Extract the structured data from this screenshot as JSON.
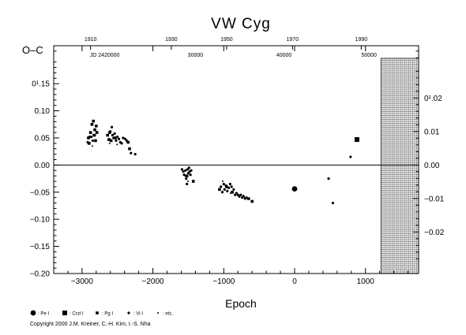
{
  "chart_data": {
    "type": "scatter",
    "title": "VW  Cyg",
    "xlabel": "Epoch",
    "ylabel": "O–C",
    "xlim": [
      -3400,
      1750
    ],
    "ylim": [
      -0.2,
      0.22
    ],
    "right_ylim_days": [
      -0.0324,
      0.0356
    ],
    "grid": false,
    "zero_line": true,
    "hatched_future_region": {
      "x_from": 1220,
      "x_to": 1750
    },
    "x_ticks": [
      {
        "value": -3000,
        "label": "−3000"
      },
      {
        "value": -2000,
        "label": "−2000"
      },
      {
        "value": -1000,
        "label": "−1000"
      },
      {
        "value": 0,
        "label": "0"
      },
      {
        "value": 1000,
        "label": "1000"
      }
    ],
    "y_ticks_left": [
      {
        "value": 0.15,
        "label": "0¹.15"
      },
      {
        "value": 0.1,
        "label": "0.10"
      },
      {
        "value": 0.05,
        "label": "0.05"
      },
      {
        "value": 0.0,
        "label": "0.00"
      },
      {
        "value": -0.05,
        "label": "−0.05"
      },
      {
        "value": -0.1,
        "label": "−0.10"
      },
      {
        "value": -0.15,
        "label": "−0.15"
      },
      {
        "value": -0.2,
        "label": "−0.20"
      }
    ],
    "y_ticks_right": [
      {
        "value": 0.02,
        "label": "0¹.02"
      },
      {
        "value": 0.01,
        "label": "0.01"
      },
      {
        "value": 0.0,
        "label": "0.00"
      },
      {
        "value": -0.01,
        "label": "−0.01"
      },
      {
        "value": -0.02,
        "label": "−0.02"
      }
    ],
    "top_year_ticks": [
      {
        "x": -2880,
        "label": "1910"
      },
      {
        "x": -1740,
        "label": "1930"
      },
      {
        "x": -960,
        "label": "1950"
      },
      {
        "x": -30,
        "label": "1970"
      },
      {
        "x": 940,
        "label": "1990"
      }
    ],
    "jd_labels": [
      {
        "x": -2680,
        "label": "JD 2420000"
      },
      {
        "x": -1400,
        "label": "30000"
      },
      {
        "x": -150,
        "label": "40000"
      },
      {
        "x": 1050,
        "label": "50000"
      }
    ],
    "series": [
      {
        "name": "Pe I",
        "marker": "big-circle",
        "points": [
          [
            0,
            -0.044
          ]
        ]
      },
      {
        "name": "Ccd I",
        "marker": "square",
        "points": [
          [
            880,
            0.047
          ]
        ]
      },
      {
        "name": "Pg I",
        "marker": "small-square",
        "points": [
          [
            -2910,
            0.05
          ],
          [
            -2900,
            0.04
          ],
          [
            -2880,
            0.06
          ],
          [
            -2860,
            0.075
          ],
          [
            -2840,
            0.081
          ],
          [
            -2830,
            0.055
          ],
          [
            -2820,
            0.065
          ],
          [
            -2810,
            0.045
          ],
          [
            -2800,
            0.072
          ],
          [
            -2790,
            0.06
          ],
          [
            -2640,
            0.055
          ],
          [
            -2620,
            0.047
          ],
          [
            -2610,
            0.06
          ],
          [
            -2590,
            0.045
          ],
          [
            -2530,
            0.05
          ],
          [
            -2350,
            0.042
          ],
          [
            -2330,
            0.03
          ],
          [
            -1520,
            -0.02
          ],
          [
            -1430,
            -0.03
          ],
          [
            -1060,
            -0.045
          ],
          [
            -960,
            -0.04
          ],
          [
            -880,
            -0.05
          ],
          [
            -650,
            -0.062
          ],
          [
            -600,
            -0.067
          ]
        ]
      },
      {
        "name": "Vi I",
        "marker": "dot",
        "points": [
          [
            -2920,
            0.042
          ],
          [
            -2895,
            0.052
          ],
          [
            -2870,
            0.052
          ],
          [
            -2850,
            0.045
          ],
          [
            -2820,
            0.055
          ],
          [
            -2600,
            0.062
          ],
          [
            -2580,
            0.07
          ],
          [
            -2570,
            0.055
          ],
          [
            -2555,
            0.05
          ],
          [
            -2540,
            0.058
          ],
          [
            -2520,
            0.045
          ],
          [
            -2500,
            0.052
          ],
          [
            -2480,
            0.048
          ],
          [
            -2460,
            0.042
          ],
          [
            -2440,
            0.04
          ],
          [
            -2420,
            0.05
          ],
          [
            -2390,
            0.048
          ],
          [
            -2370,
            0.045
          ],
          [
            -2310,
            0.022
          ],
          [
            -2250,
            0.02
          ],
          [
            -1590,
            -0.008
          ],
          [
            -1570,
            -0.012
          ],
          [
            -1560,
            -0.018
          ],
          [
            -1540,
            -0.01
          ],
          [
            -1530,
            -0.025
          ],
          [
            -1520,
            -0.035
          ],
          [
            -1510,
            -0.008
          ],
          [
            -1500,
            -0.015
          ],
          [
            -1490,
            -0.005
          ],
          [
            -1480,
            -0.012
          ],
          [
            -1470,
            -0.018
          ],
          [
            -1460,
            -0.01
          ],
          [
            -1040,
            -0.04
          ],
          [
            -1020,
            -0.05
          ],
          [
            -1000,
            -0.035
          ],
          [
            -990,
            -0.045
          ],
          [
            -970,
            -0.038
          ],
          [
            -950,
            -0.048
          ],
          [
            -930,
            -0.042
          ],
          [
            -910,
            -0.035
          ],
          [
            -890,
            -0.04
          ],
          [
            -860,
            -0.045
          ],
          [
            -840,
            -0.055
          ],
          [
            -820,
            -0.052
          ],
          [
            -800,
            -0.055
          ],
          [
            -780,
            -0.058
          ],
          [
            -760,
            -0.055
          ],
          [
            -740,
            -0.06
          ],
          [
            -720,
            -0.058
          ],
          [
            -700,
            -0.062
          ],
          [
            -680,
            -0.06
          ],
          [
            480,
            -0.025
          ],
          [
            540,
            -0.07
          ],
          [
            790,
            0.015
          ]
        ]
      },
      {
        "name": "etc.",
        "marker": "tiny-dot",
        "points": [
          [
            -2855,
            0.035
          ],
          [
            -2610,
            0.04
          ],
          [
            -2505,
            0.038
          ],
          [
            -1545,
            -0.02
          ],
          [
            -1505,
            -0.03
          ],
          [
            -1015,
            -0.03
          ],
          [
            -905,
            -0.052
          ],
          [
            -725,
            -0.056
          ]
        ]
      }
    ],
    "legend": [
      {
        "marker": "big-circle",
        "label": ": Pe I"
      },
      {
        "marker": "square",
        "label": ": Ccd I"
      },
      {
        "marker": "small-square",
        "label": ": Pg I"
      },
      {
        "marker": "dot",
        "label": ": Vi I"
      },
      {
        "marker": "tiny-dot",
        "label": ": etc."
      }
    ],
    "legend_position": "bottom-left",
    "copyright": "Copyright 2000 J.M. Kreiner, C.-H. Kim, I.-S. Nha"
  }
}
